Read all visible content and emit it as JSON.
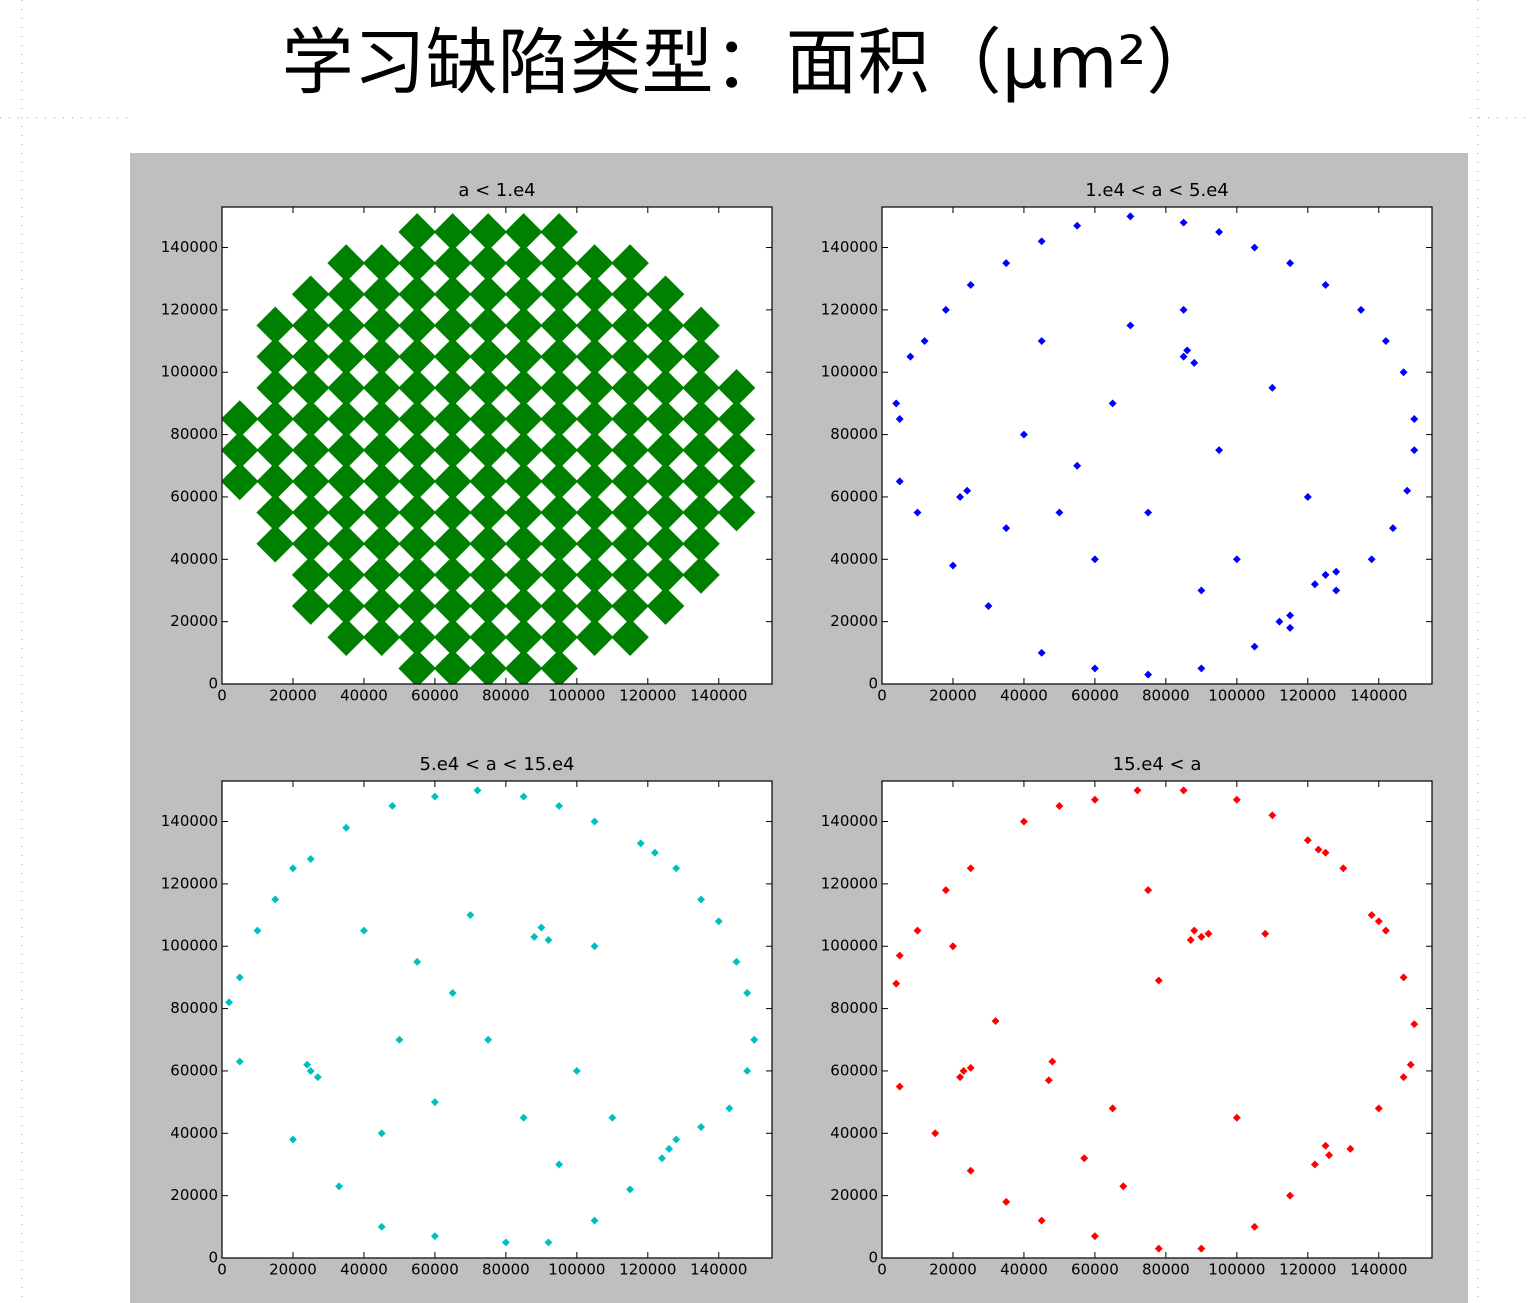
{
  "title": "学习缺陷类型：面积（μm²）",
  "chart_data": [
    {
      "type": "scatter",
      "title": "a < 1.e4",
      "color": "#008000",
      "x": [
        5000,
        5000,
        5000,
        15000,
        15000,
        15000,
        15000,
        15000,
        15000,
        15000,
        15000,
        25000,
        25000,
        25000,
        25000,
        25000,
        25000,
        25000,
        25000,
        25000,
        25000,
        25000,
        35000,
        35000,
        35000,
        35000,
        35000,
        35000,
        35000,
        35000,
        35000,
        35000,
        35000,
        35000,
        35000,
        45000,
        45000,
        45000,
        45000,
        45000,
        45000,
        45000,
        45000,
        45000,
        45000,
        45000,
        45000,
        45000,
        55000,
        55000,
        55000,
        55000,
        55000,
        55000,
        55000,
        55000,
        55000,
        55000,
        55000,
        55000,
        55000,
        55000,
        55000,
        65000,
        65000,
        65000,
        65000,
        65000,
        65000,
        65000,
        65000,
        65000,
        65000,
        65000,
        65000,
        65000,
        65000,
        65000,
        75000,
        75000,
        75000,
        75000,
        75000,
        75000,
        75000,
        75000,
        75000,
        75000,
        75000,
        75000,
        75000,
        75000,
        75000,
        85000,
        85000,
        85000,
        85000,
        85000,
        85000,
        85000,
        85000,
        85000,
        85000,
        85000,
        85000,
        85000,
        85000,
        85000,
        95000,
        95000,
        95000,
        95000,
        95000,
        95000,
        95000,
        95000,
        95000,
        95000,
        95000,
        95000,
        95000,
        95000,
        95000,
        105000,
        105000,
        105000,
        105000,
        105000,
        105000,
        105000,
        105000,
        105000,
        105000,
        105000,
        105000,
        105000,
        115000,
        115000,
        115000,
        115000,
        115000,
        115000,
        115000,
        115000,
        115000,
        115000,
        115000,
        115000,
        115000,
        125000,
        125000,
        125000,
        125000,
        125000,
        125000,
        125000,
        125000,
        125000,
        125000,
        125000,
        135000,
        135000,
        135000,
        135000,
        135000,
        135000,
        135000,
        135000,
        135000,
        145000,
        145000,
        145000,
        145000,
        145000
      ],
      "y": [
        65000,
        75000,
        85000,
        45000,
        55000,
        65000,
        75000,
        85000,
        95000,
        105000,
        115000,
        25000,
        35000,
        45000,
        55000,
        65000,
        75000,
        85000,
        95000,
        105000,
        115000,
        125000,
        15000,
        25000,
        35000,
        45000,
        55000,
        65000,
        75000,
        85000,
        95000,
        105000,
        115000,
        125000,
        135000,
        15000,
        25000,
        35000,
        45000,
        55000,
        65000,
        75000,
        85000,
        95000,
        105000,
        115000,
        125000,
        135000,
        5000,
        15000,
        25000,
        35000,
        45000,
        55000,
        65000,
        75000,
        85000,
        95000,
        105000,
        115000,
        125000,
        135000,
        145000,
        5000,
        15000,
        25000,
        35000,
        45000,
        55000,
        65000,
        75000,
        85000,
        95000,
        105000,
        115000,
        125000,
        135000,
        145000,
        5000,
        15000,
        25000,
        35000,
        45000,
        55000,
        65000,
        75000,
        85000,
        95000,
        105000,
        115000,
        125000,
        135000,
        145000,
        5000,
        15000,
        25000,
        35000,
        45000,
        55000,
        65000,
        75000,
        85000,
        95000,
        105000,
        115000,
        125000,
        135000,
        145000,
        5000,
        15000,
        25000,
        35000,
        45000,
        55000,
        65000,
        75000,
        85000,
        95000,
        105000,
        115000,
        125000,
        135000,
        145000,
        15000,
        25000,
        35000,
        45000,
        55000,
        65000,
        75000,
        85000,
        95000,
        105000,
        115000,
        125000,
        135000,
        15000,
        25000,
        35000,
        45000,
        55000,
        65000,
        75000,
        85000,
        95000,
        105000,
        115000,
        125000,
        135000,
        25000,
        35000,
        45000,
        55000,
        65000,
        75000,
        85000,
        95000,
        105000,
        115000,
        125000,
        35000,
        45000,
        55000,
        65000,
        75000,
        85000,
        95000,
        105000,
        115000,
        55000,
        65000,
        75000,
        85000,
        95000
      ],
      "xlim": [
        0,
        155000
      ],
      "ylim": [
        0,
        153000
      ],
      "xticks": [
        0,
        20000,
        40000,
        60000,
        80000,
        100000,
        120000,
        140000
      ],
      "yticks": [
        0,
        20000,
        40000,
        60000,
        80000,
        100000,
        120000,
        140000
      ]
    },
    {
      "type": "scatter",
      "title": "1.e4 < a < 5.e4",
      "color": "#0000ff",
      "x": [
        5000,
        4000,
        8000,
        12000,
        18000,
        25000,
        35000,
        45000,
        55000,
        70000,
        85000,
        95000,
        105000,
        115000,
        125000,
        135000,
        142000,
        147000,
        150000,
        150000,
        148000,
        144000,
        138000,
        128000,
        115000,
        105000,
        90000,
        75000,
        60000,
        45000,
        30000,
        20000,
        10000,
        5000,
        85000,
        88000,
        86000,
        24000,
        22000,
        125000,
        122000,
        128000,
        115000,
        112000,
        40000,
        55000,
        65000,
        75000,
        95000,
        100000,
        60000,
        45000,
        110000,
        85000,
        70000,
        50000,
        120000,
        35000,
        90000
      ],
      "y": [
        85000,
        90000,
        105000,
        110000,
        120000,
        128000,
        135000,
        142000,
        147000,
        150000,
        148000,
        145000,
        140000,
        135000,
        128000,
        120000,
        110000,
        100000,
        85000,
        75000,
        62000,
        50000,
        40000,
        30000,
        18000,
        12000,
        5000,
        3000,
        5000,
        10000,
        25000,
        38000,
        55000,
        65000,
        105000,
        103000,
        107000,
        62000,
        60000,
        35000,
        32000,
        36000,
        22000,
        20000,
        80000,
        70000,
        90000,
        55000,
        75000,
        40000,
        40000,
        110000,
        95000,
        120000,
        115000,
        55000,
        60000,
        50000,
        30000
      ],
      "xlim": [
        0,
        155000
      ],
      "ylim": [
        0,
        153000
      ],
      "xticks": [
        0,
        20000,
        40000,
        60000,
        80000,
        100000,
        120000,
        140000
      ],
      "yticks": [
        0,
        20000,
        40000,
        60000,
        80000,
        100000,
        120000,
        140000
      ]
    },
    {
      "type": "scatter",
      "title": "5.e4 < a < 15.e4",
      "color": "#00bfbf",
      "x": [
        2000,
        5000,
        10000,
        15000,
        20000,
        25000,
        35000,
        48000,
        60000,
        72000,
        85000,
        95000,
        105000,
        118000,
        122000,
        128000,
        135000,
        140000,
        145000,
        148000,
        150000,
        148000,
        143000,
        135000,
        126000,
        124000,
        128000,
        115000,
        105000,
        92000,
        80000,
        60000,
        45000,
        20000,
        33000,
        5000,
        25000,
        27000,
        24000,
        88000,
        90000,
        92000,
        40000,
        55000,
        65000,
        50000,
        75000,
        100000,
        110000,
        60000,
        85000,
        70000,
        105000,
        45000,
        95000
      ],
      "y": [
        82000,
        90000,
        105000,
        115000,
        125000,
        128000,
        138000,
        145000,
        148000,
        150000,
        148000,
        145000,
        140000,
        133000,
        130000,
        125000,
        115000,
        108000,
        95000,
        85000,
        70000,
        60000,
        48000,
        42000,
        35000,
        32000,
        38000,
        22000,
        12000,
        5000,
        5000,
        7000,
        10000,
        38000,
        23000,
        63000,
        60000,
        58000,
        62000,
        103000,
        106000,
        102000,
        105000,
        95000,
        85000,
        70000,
        70000,
        60000,
        45000,
        50000,
        45000,
        110000,
        100000,
        40000,
        30000
      ],
      "xlim": [
        0,
        155000
      ],
      "ylim": [
        0,
        153000
      ],
      "xticks": [
        0,
        20000,
        40000,
        60000,
        80000,
        100000,
        120000,
        140000
      ],
      "yticks": [
        0,
        20000,
        40000,
        60000,
        80000,
        100000,
        120000,
        140000
      ]
    },
    {
      "type": "scatter",
      "title": "15.e4 < a",
      "color": "#ff0000",
      "x": [
        4000,
        5000,
        10000,
        18000,
        25000,
        40000,
        50000,
        60000,
        72000,
        85000,
        100000,
        110000,
        120000,
        123000,
        125000,
        130000,
        138000,
        140000,
        142000,
        147000,
        150000,
        149000,
        147000,
        140000,
        132000,
        125000,
        126000,
        122000,
        115000,
        105000,
        90000,
        78000,
        60000,
        45000,
        35000,
        25000,
        15000,
        5000,
        23000,
        22000,
        25000,
        88000,
        90000,
        92000,
        87000,
        32000,
        48000,
        47000,
        57000,
        65000,
        78000,
        100000,
        108000,
        68000,
        20000,
        75000
      ],
      "y": [
        88000,
        97000,
        105000,
        118000,
        125000,
        140000,
        145000,
        147000,
        150000,
        150000,
        147000,
        142000,
        134000,
        131000,
        130000,
        125000,
        110000,
        108000,
        105000,
        90000,
        75000,
        62000,
        58000,
        48000,
        35000,
        36000,
        33000,
        30000,
        20000,
        10000,
        3000,
        3000,
        7000,
        12000,
        18000,
        28000,
        40000,
        55000,
        60000,
        58000,
        61000,
        105000,
        103000,
        104000,
        102000,
        76000,
        63000,
        57000,
        32000,
        48000,
        89000,
        45000,
        104000,
        23000,
        100000,
        118000
      ],
      "xlim": [
        0,
        155000
      ],
      "ylim": [
        0,
        153000
      ],
      "xticks": [
        0,
        20000,
        40000,
        60000,
        80000,
        100000,
        120000,
        140000
      ],
      "yticks": [
        0,
        20000,
        40000,
        60000,
        80000,
        100000,
        120000,
        140000
      ]
    }
  ]
}
